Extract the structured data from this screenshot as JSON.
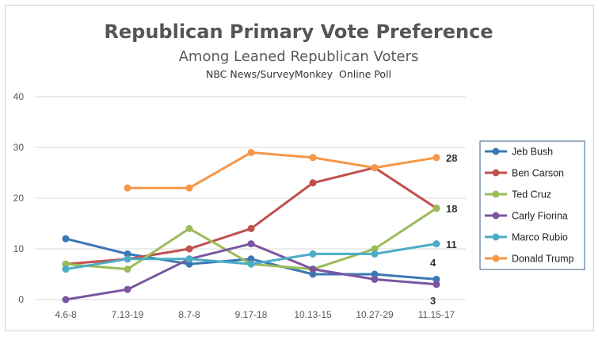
{
  "chart_data": {
    "type": "line",
    "title": "Republican Primary Vote Preference",
    "subtitle": "Among Leaned Republican Voters",
    "source": "NBC News/SurveyMonkey  Online Poll",
    "categories": [
      "4.6-8",
      "7.13-19",
      "8.7-8",
      "9.17-18",
      "10.13-15",
      "10.27-29",
      "11.15-17"
    ],
    "ylim": [
      0,
      40
    ],
    "yticks": [
      "0",
      "10",
      "20",
      "30",
      "40"
    ],
    "grid": true,
    "legend": "right",
    "series": [
      {
        "name": "Jeb Bush",
        "color": "#3a78b4",
        "values": [
          12,
          9,
          7,
          8,
          5,
          5,
          4
        ]
      },
      {
        "name": "Ben Carson",
        "color": "#c0504d",
        "values": [
          7,
          8,
          10,
          14,
          23,
          26,
          18
        ]
      },
      {
        "name": "Ted Cruz",
        "color": "#9bbb59",
        "values": [
          7,
          6,
          14,
          7,
          6,
          10,
          18
        ]
      },
      {
        "name": "Carly Fiorina",
        "color": "#7b56a0",
        "values": [
          0,
          2,
          8,
          11,
          6,
          4,
          3
        ]
      },
      {
        "name": "Marco Rubio",
        "color": "#4bacc6",
        "values": [
          6,
          8,
          8,
          7,
          9,
          9,
          11
        ]
      },
      {
        "name": "Donald Trump",
        "color": "#f79646",
        "values": [
          null,
          22,
          22,
          29,
          28,
          26,
          28
        ]
      }
    ],
    "end_labels": [
      "28",
      "18",
      "11",
      "4",
      "3"
    ]
  }
}
